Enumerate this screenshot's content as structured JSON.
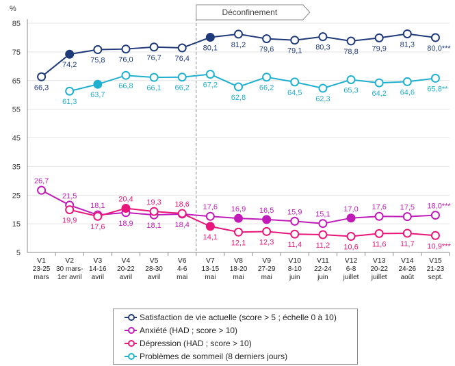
{
  "chart_data": {
    "type": "line",
    "ylabel": "%",
    "ylim": [
      5,
      85
    ],
    "yticks": [
      5,
      15,
      25,
      35,
      45,
      55,
      65,
      75,
      85
    ],
    "grid": "horizontal",
    "legend_position": "bottom",
    "categories": [
      {
        "wave": "V1",
        "dates": [
          "23-25",
          "mars"
        ]
      },
      {
        "wave": "V2",
        "dates": [
          "30 mars-",
          "1er avril"
        ]
      },
      {
        "wave": "V3",
        "dates": [
          "14-16",
          "avril"
        ]
      },
      {
        "wave": "V4",
        "dates": [
          "20-22",
          "avril"
        ]
      },
      {
        "wave": "V5",
        "dates": [
          "28-30",
          "avril"
        ]
      },
      {
        "wave": "V6",
        "dates": [
          "4-6",
          "mai"
        ]
      },
      {
        "wave": "V7",
        "dates": [
          "13-15",
          "mai"
        ]
      },
      {
        "wave": "V8",
        "dates": [
          "18-20",
          "mai"
        ]
      },
      {
        "wave": "V9",
        "dates": [
          "27-29",
          "mai"
        ]
      },
      {
        "wave": "V10",
        "dates": [
          "8-10",
          "juin"
        ]
      },
      {
        "wave": "V11",
        "dates": [
          "22-24",
          "juin"
        ]
      },
      {
        "wave": "V12",
        "dates": [
          "6-8",
          "juillet"
        ]
      },
      {
        "wave": "V13",
        "dates": [
          "20-22",
          "juillet"
        ]
      },
      {
        "wave": "V14",
        "dates": [
          "24-26",
          "août"
        ]
      },
      {
        "wave": "V15",
        "dates": [
          "21-23",
          "sept."
        ]
      }
    ],
    "annotation": {
      "text": "Déconfinement",
      "between_waves": [
        "V6",
        "V7"
      ]
    },
    "series": [
      {
        "name": "Satisfaction de vie actuelle (score > 5 ; échelle 0 à 10)",
        "color": "#1f3a7a",
        "values": [
          66.3,
          74.2,
          75.8,
          76.0,
          76.7,
          76.4,
          80.1,
          81.2,
          79.6,
          79.1,
          80.3,
          78.8,
          79.9,
          81.3,
          80.0
        ],
        "labels": [
          "66,3",
          "74,2",
          "75,8",
          "76,0",
          "76,7",
          "76,4",
          "80,1",
          "81,2",
          "79,6",
          "79,1",
          "80,3",
          "78,8",
          "79,9",
          "81,3",
          "80,0***"
        ],
        "filled": [
          1,
          6
        ],
        "label_pos": "below"
      },
      {
        "name": "Problèmes de sommeil (8 derniers jours)",
        "color": "#1fb0cf",
        "values": [
          null,
          61.3,
          63.7,
          66.8,
          66.1,
          66.2,
          67.2,
          62.8,
          66.2,
          64.5,
          62.3,
          65.3,
          64.2,
          64.6,
          65.8
        ],
        "labels": [
          null,
          "61,3",
          "63,7",
          "66,8",
          "66,1",
          "66,2",
          "67,2",
          "62,8",
          "66,2",
          "64,5",
          "62,3",
          "65,3",
          "64,2",
          "64,6",
          "65,8**"
        ],
        "filled": [
          2
        ],
        "label_pos": "below"
      },
      {
        "name": "Anxiété (HAD ; score > 10)",
        "color": "#c01ab8",
        "values": [
          26.7,
          21.5,
          18.1,
          18.9,
          18.1,
          18.4,
          17.6,
          16.9,
          16.5,
          15.9,
          15.1,
          17.0,
          17.6,
          17.5,
          18.0
        ],
        "labels": [
          "26,7",
          "21,5",
          "18,1",
          "18,9",
          "18,1",
          "18,4",
          "17,6",
          "16,9",
          "16,5",
          "15,9",
          "15,1",
          "17,0",
          "17,6",
          "17,5",
          "18,0***"
        ],
        "filled": [
          7,
          8,
          11
        ],
        "label_pos": [
          "above",
          "above",
          "above",
          "below",
          "below",
          "below",
          "above",
          "above",
          "above",
          "above",
          "above",
          "above",
          "above",
          "above",
          "above"
        ]
      },
      {
        "name": "Dépression (HAD ; score > 10)",
        "color": "#e8157a",
        "values": [
          null,
          19.9,
          17.6,
          20.4,
          19.3,
          18.6,
          14.1,
          12.1,
          12.3,
          11.4,
          11.2,
          10.6,
          11.6,
          11.7,
          10.9
        ],
        "labels": [
          null,
          "19,9",
          "17,6",
          "20,4",
          "19,3",
          "18,6",
          "14,1",
          "12,1",
          "12,3",
          "11,4",
          "11,2",
          "10,6",
          "11,6",
          "11,7",
          "10,9***"
        ],
        "filled": [
          3,
          6
        ],
        "label_pos": [
          "below",
          "below",
          "below",
          "above",
          "above",
          "above",
          "below",
          "below",
          "below",
          "below",
          "below",
          "below",
          "below",
          "below",
          "below"
        ]
      }
    ]
  },
  "legend": {
    "items": [
      {
        "label": "Satisfaction de vie actuelle (score > 5 ; échelle 0 à 10)",
        "color": "#1f3a7a"
      },
      {
        "label": "Anxiété (HAD ; score > 10)",
        "color": "#c01ab8"
      },
      {
        "label": "Dépression (HAD ; score > 10)",
        "color": "#e8157a"
      },
      {
        "label": "Problèmes de sommeil (8 derniers jours)",
        "color": "#1fb0cf"
      }
    ]
  }
}
